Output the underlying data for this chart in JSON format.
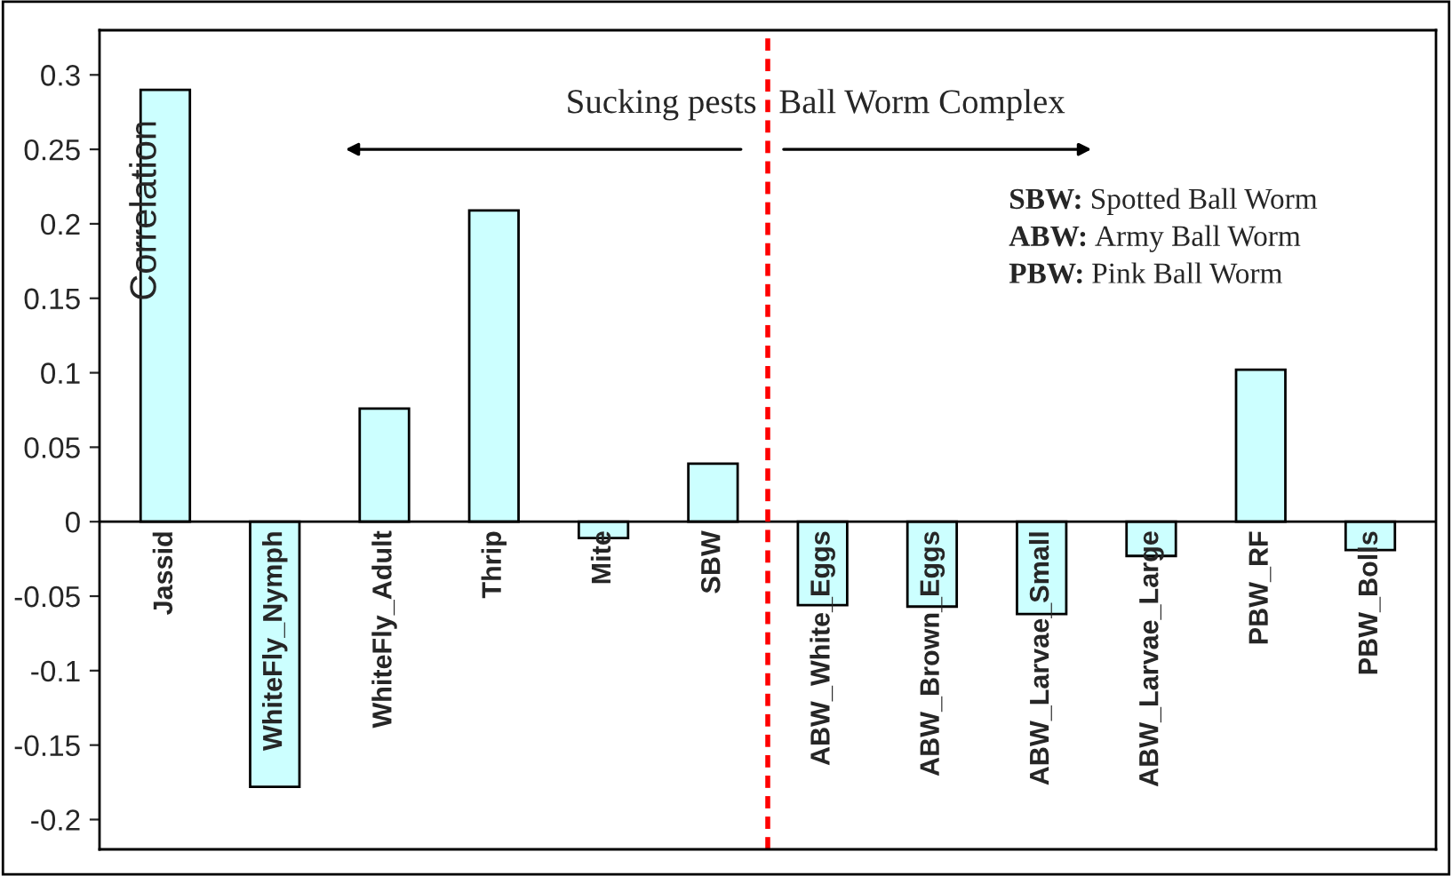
{
  "chart_data": {
    "type": "bar",
    "ylabel": "Correlation",
    "categories": [
      "Jassid",
      "WhiteFly_Nymph",
      "WhiteFly_Adult",
      "Thrip",
      "Mite",
      "SBW",
      "ABW_White_Eggs",
      "ABW_Brown_Eggs",
      "ABW_Larvae_Small",
      "ABW_Larvae_Large",
      "PBW_RF",
      "PBW_Bolls"
    ],
    "values": [
      0.29,
      -0.178,
      0.076,
      0.209,
      -0.011,
      0.039,
      -0.056,
      -0.057,
      -0.062,
      -0.023,
      0.102,
      -0.019
    ],
    "color": "#ccffff",
    "ylim": [
      -0.22,
      0.33
    ],
    "yticks": [
      -0.2,
      -0.15,
      -0.1,
      -0.05,
      0,
      0.05,
      0.1,
      0.15,
      0.2,
      0.25,
      0.3
    ],
    "grid": false,
    "annotations": [
      "Sucking pests",
      "Ball Worm Complex",
      "SBW:",
      "Spotted Ball Worm",
      "ABW:",
      "Army Ball Worm",
      "PBW:",
      "Pink Ball Worm"
    ]
  }
}
